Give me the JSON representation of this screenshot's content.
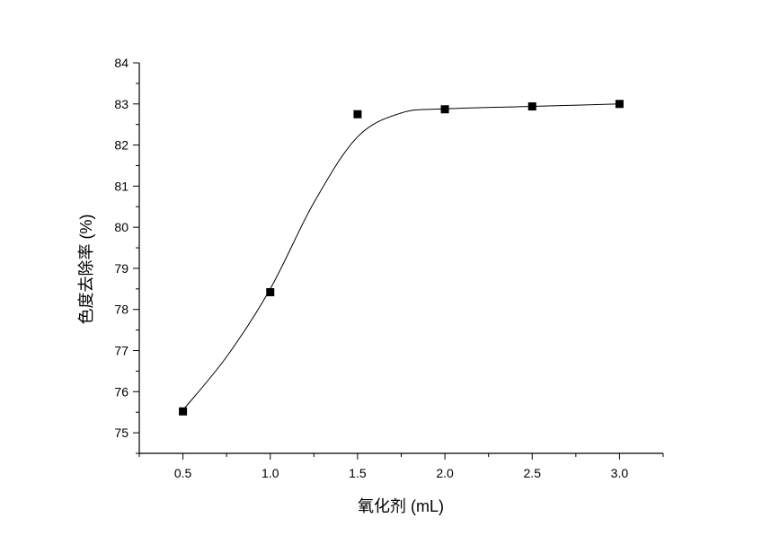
{
  "chart_data": {
    "type": "scatter",
    "title": "",
    "xlabel": "氧化剂 (mL)",
    "ylabel": "色度去除率 (%)",
    "xlim": [
      0.25,
      3.25
    ],
    "ylim": [
      74.5,
      84
    ],
    "x_ticks": [
      0.5,
      1.0,
      1.5,
      2.0,
      2.5,
      3.0
    ],
    "x_tick_labels": [
      "0.5",
      "1.0",
      "1.5",
      "2.0",
      "2.5",
      "3.0"
    ],
    "y_ticks": [
      75,
      76,
      77,
      78,
      79,
      80,
      81,
      82,
      83,
      84
    ],
    "y_tick_labels": [
      "75",
      "76",
      "77",
      "78",
      "79",
      "80",
      "81",
      "82",
      "83",
      "84"
    ],
    "grid": false,
    "legend": "none",
    "series": [
      {
        "marker": "square",
        "color": "#000000",
        "x": [
          0.5,
          1.0,
          1.5,
          2.0,
          2.5,
          3.0
        ],
        "y": [
          75.52,
          78.42,
          82.75,
          82.87,
          82.94,
          83.0
        ]
      }
    ],
    "fit_curve": {
      "color": "#000000",
      "x": [
        0.5,
        0.75,
        1.0,
        1.25,
        1.5,
        1.75,
        2.0,
        2.5,
        3.0
      ],
      "y": [
        75.55,
        76.85,
        78.5,
        80.6,
        82.2,
        82.78,
        82.88,
        82.94,
        83.0
      ]
    }
  }
}
